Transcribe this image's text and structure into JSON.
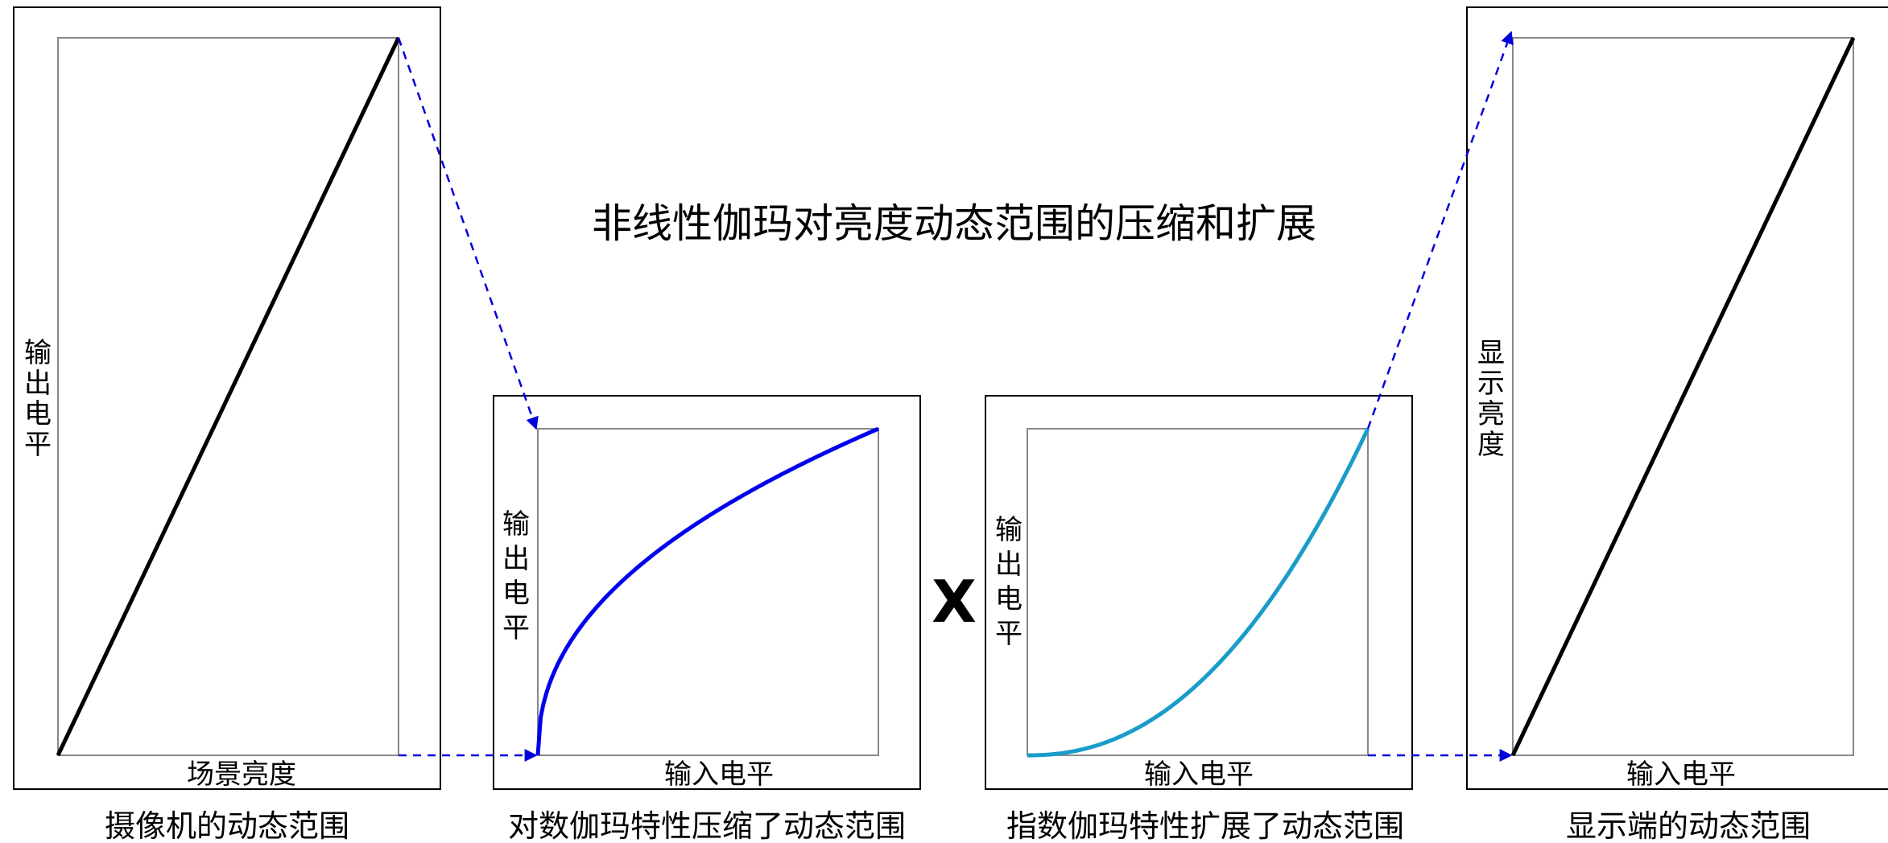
{
  "title": "非线性伽玛对亮度动态范围的压缩和扩展",
  "operator": "X",
  "panels": [
    {
      "caption": "摄像机的动态范围",
      "xlabel": "场景亮度",
      "ylabel": [
        "输",
        "出",
        "电",
        "平"
      ],
      "curve": "linear",
      "color": "#000000"
    },
    {
      "caption": "对数伽玛特性压缩了动态范围",
      "xlabel": "输入电平",
      "ylabel": [
        "输",
        "出",
        "电",
        "平"
      ],
      "curve": "log-compress",
      "color": "#0000ee"
    },
    {
      "caption": "指数伽玛特性扩展了动态范围",
      "xlabel": "输入电平",
      "ylabel": [
        "输",
        "出",
        "电",
        "平"
      ],
      "curve": "exp-expand",
      "color": "#1a9cc9"
    },
    {
      "caption": "显示端的动态范围",
      "xlabel": "输入电平",
      "ylabel": [
        "显",
        "示",
        "亮",
        "度"
      ],
      "curve": "linear",
      "color": "#000000"
    }
  ],
  "arrow_color": "#0000dd"
}
